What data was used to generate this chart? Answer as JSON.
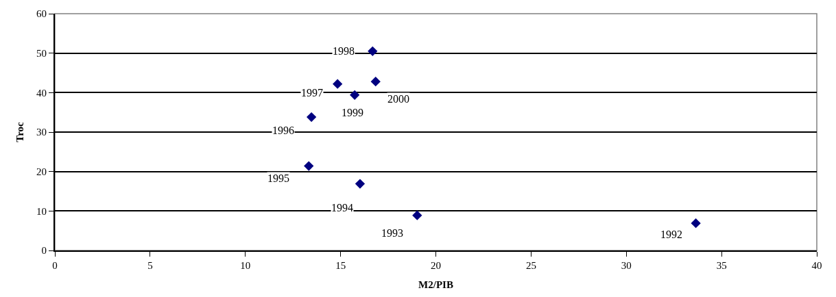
{
  "chart_data": {
    "type": "scatter",
    "xlabel": "M2/PIB",
    "ylabel": "Troc",
    "x": [
      33.65,
      19.02,
      16.02,
      13.33,
      13.47,
      14.84,
      16.68,
      15.74,
      16.84
    ],
    "series": [
      {
        "color": "#000080",
        "values": [
          6.9,
          8.9,
          16.9,
          21.4,
          33.8,
          42.2,
          50.5,
          39.4,
          42.8
        ]
      }
    ],
    "annotations": [
      {
        "text": "1992",
        "x": 33.65,
        "y": 6.9
      },
      {
        "text": "1993",
        "x": 19.02,
        "y": 8.9
      },
      {
        "text": "1994",
        "x": 16.02,
        "y": 16.9
      },
      {
        "text": "1995",
        "x": 13.33,
        "y": 21.4
      },
      {
        "text": "1996",
        "x": 13.47,
        "y": 33.8
      },
      {
        "text": "1997",
        "x": 14.84,
        "y": 42.2
      },
      {
        "text": "1998",
        "x": 16.68,
        "y": 50.5
      },
      {
        "text": "1999",
        "x": 15.74,
        "y": 39.4
      },
      {
        "text": "2000",
        "x": 16.84,
        "y": 42.8
      }
    ],
    "xlim": [
      0,
      40
    ],
    "xticks": [
      0,
      5,
      10,
      15,
      20,
      25,
      30,
      35,
      40
    ],
    "ylim": [
      0,
      60
    ],
    "yticks": [
      0,
      10,
      20,
      30,
      40,
      50,
      60
    ],
    "grid": "y",
    "marker": "diamond"
  }
}
